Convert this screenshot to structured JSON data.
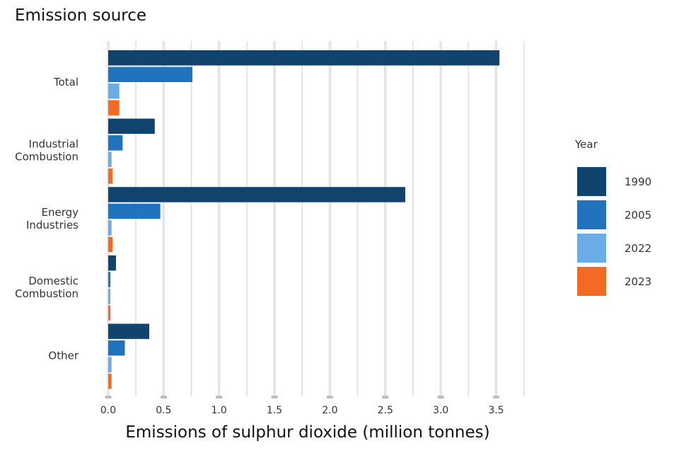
{
  "chart_data": {
    "type": "bar",
    "orientation": "horizontal",
    "ylabel": "Emission source",
    "xlabel": "Emissions of sulphur dioxide (million tonnes)",
    "categories": [
      "Total",
      "Industrial\nCombustion",
      "Energy\nIndustries",
      "Domestic\nCombustion",
      "Other"
    ],
    "series": [
      {
        "name": "1990",
        "color": "#12436d",
        "values": [
          3.53,
          0.42,
          2.68,
          0.07,
          0.37
        ]
      },
      {
        "name": "2005",
        "color": "#2073bc",
        "values": [
          0.76,
          0.13,
          0.47,
          0.02,
          0.15
        ]
      },
      {
        "name": "2022",
        "color": "#6bace6",
        "values": [
          0.1,
          0.03,
          0.03,
          0.02,
          0.03
        ]
      },
      {
        "name": "2023",
        "color": "#f46a25",
        "values": [
          0.1,
          0.04,
          0.04,
          0.02,
          0.03
        ]
      }
    ],
    "xlim": [
      0,
      3.75
    ],
    "xticks": [
      "0.0",
      "0.5",
      "1.0",
      "1.5",
      "2.0",
      "2.5",
      "3.0",
      "3.5"
    ],
    "grid": true,
    "legend": {
      "title": "Year",
      "position": "right"
    }
  }
}
